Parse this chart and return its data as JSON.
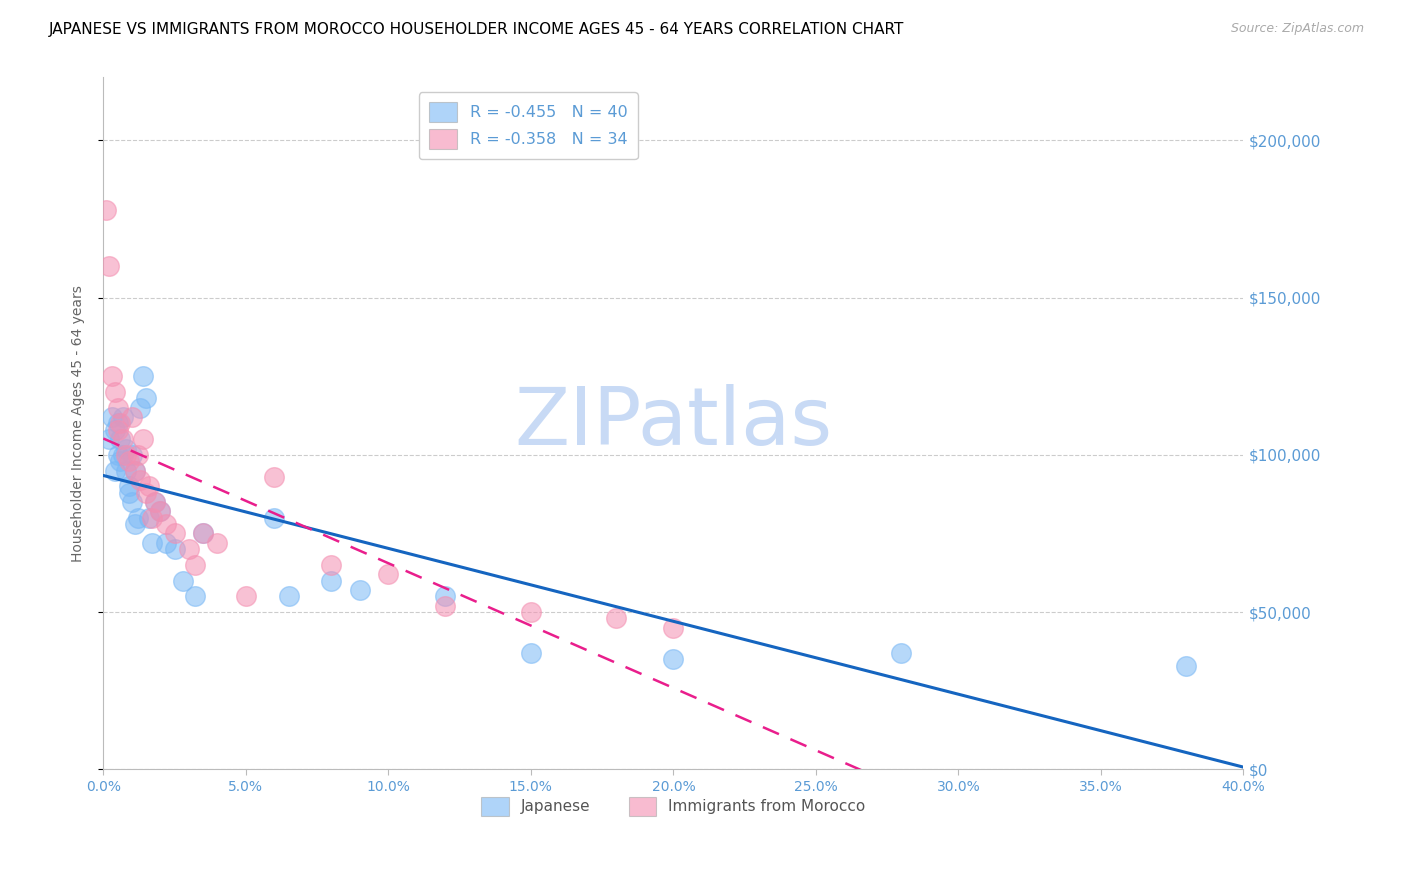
{
  "title": "JAPANESE VS IMMIGRANTS FROM MOROCCO HOUSEHOLDER INCOME AGES 45 - 64 YEARS CORRELATION CHART",
  "source": "Source: ZipAtlas.com",
  "ylabel": "Householder Income Ages 45 - 64 years",
  "watermark": "ZIPatlas",
  "legend_entries": [
    {
      "label": "R = -0.455   N = 40",
      "color": "#7ab8f5"
    },
    {
      "label": "R = -0.358   N = 34",
      "color": "#f48fb1"
    }
  ],
  "japanese_x": [
    0.002,
    0.003,
    0.004,
    0.004,
    0.005,
    0.005,
    0.006,
    0.006,
    0.007,
    0.007,
    0.008,
    0.008,
    0.009,
    0.009,
    0.01,
    0.01,
    0.011,
    0.011,
    0.012,
    0.013,
    0.014,
    0.015,
    0.016,
    0.017,
    0.018,
    0.02,
    0.022,
    0.025,
    0.028,
    0.032,
    0.035,
    0.06,
    0.065,
    0.08,
    0.09,
    0.12,
    0.15,
    0.2,
    0.28,
    0.38
  ],
  "japanese_y": [
    105000,
    112000,
    108000,
    95000,
    110000,
    100000,
    105000,
    98000,
    112000,
    100000,
    102000,
    95000,
    90000,
    88000,
    100000,
    85000,
    95000,
    78000,
    80000,
    115000,
    125000,
    118000,
    80000,
    72000,
    85000,
    82000,
    72000,
    70000,
    60000,
    55000,
    75000,
    80000,
    55000,
    60000,
    57000,
    55000,
    37000,
    35000,
    37000,
    33000
  ],
  "morocco_x": [
    0.001,
    0.002,
    0.003,
    0.004,
    0.005,
    0.005,
    0.006,
    0.007,
    0.008,
    0.009,
    0.01,
    0.011,
    0.012,
    0.013,
    0.014,
    0.015,
    0.016,
    0.017,
    0.018,
    0.02,
    0.022,
    0.025,
    0.03,
    0.032,
    0.035,
    0.04,
    0.05,
    0.06,
    0.08,
    0.1,
    0.12,
    0.15,
    0.18,
    0.2
  ],
  "morocco_y": [
    178000,
    160000,
    125000,
    120000,
    115000,
    108000,
    110000,
    105000,
    100000,
    98000,
    112000,
    95000,
    100000,
    92000,
    105000,
    88000,
    90000,
    80000,
    85000,
    82000,
    78000,
    75000,
    70000,
    65000,
    75000,
    72000,
    55000,
    93000,
    65000,
    62000,
    52000,
    50000,
    48000,
    45000
  ],
  "x_min": 0.0,
  "x_max": 0.4,
  "y_min": 0,
  "y_max": 220000,
  "blue_color": "#7ab8f5",
  "pink_color": "#f48fb1",
  "trendline_blue": "#1565c0",
  "trendline_pink": "#e91e8c",
  "grid_color": "#cccccc",
  "axis_label_color": "#5b9bd5",
  "title_fontsize": 11,
  "source_fontsize": 9,
  "watermark_color": "#c8daf5",
  "watermark_fontsize": 58,
  "legend_R_color": "#00bcd4",
  "legend_N_color": "#2196f3"
}
